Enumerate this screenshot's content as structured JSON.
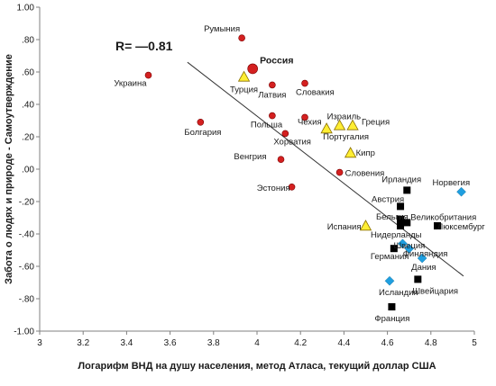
{
  "chart_data": {
    "type": "scatter",
    "xlabel": "Логарифм ВНД на душу населения, метод Атласа, текущий доллар США",
    "ylabel": "Забота о людях и природе - Самоутверждение",
    "xlim": [
      3,
      5
    ],
    "ylim": [
      -1.0,
      1.0
    ],
    "x_ticks": [
      "3",
      "3.2",
      "3.4",
      "3.6",
      "3.8",
      "4",
      "4.2",
      "4.4",
      "4.6",
      "4.8",
      "5"
    ],
    "y_ticks": [
      "1.00",
      ".80",
      ".60",
      ".40",
      ".20",
      ".00",
      "-.20",
      "-.40",
      "-.60",
      "-.80",
      "-1.00"
    ],
    "annotation": "R= —0.81",
    "trendline": {
      "x": [
        3.68,
        4.95
      ],
      "y": [
        0.66,
        -0.66
      ]
    },
    "colors": {
      "group1": "#d42020",
      "group2": "#ffee33",
      "group3": "#000000",
      "group4": "#1f9fe0"
    },
    "points": [
      {
        "label": "Румыния",
        "x": 3.93,
        "y": 0.81,
        "shape": "circle",
        "color": "group1"
      },
      {
        "label": "Россия",
        "x": 3.98,
        "y": 0.62,
        "shape": "circle",
        "color": "group1",
        "highlight": true
      },
      {
        "label": "Украина",
        "x": 3.5,
        "y": 0.58,
        "shape": "circle",
        "color": "group1"
      },
      {
        "label": "Турция",
        "x": 3.94,
        "y": 0.57,
        "shape": "triangle",
        "color": "group2"
      },
      {
        "label": "Латвия",
        "x": 4.07,
        "y": 0.52,
        "shape": "circle",
        "color": "group1"
      },
      {
        "label": "Словакия",
        "x": 4.22,
        "y": 0.53,
        "shape": "circle",
        "color": "group1"
      },
      {
        "label": "Польша",
        "x": 4.07,
        "y": 0.33,
        "shape": "circle",
        "color": "group1"
      },
      {
        "label": "Чехия",
        "x": 4.22,
        "y": 0.32,
        "shape": "circle",
        "color": "group1"
      },
      {
        "label": "Израиль",
        "x": 4.38,
        "y": 0.27,
        "shape": "triangle",
        "color": "group2"
      },
      {
        "label": "Греция",
        "x": 4.44,
        "y": 0.27,
        "shape": "triangle",
        "color": "group2"
      },
      {
        "label": "Болгария",
        "x": 3.74,
        "y": 0.29,
        "shape": "circle",
        "color": "group1"
      },
      {
        "label": "Португалия",
        "x": 4.32,
        "y": 0.25,
        "shape": "triangle",
        "color": "group2"
      },
      {
        "label": "Хорватия",
        "x": 4.13,
        "y": 0.22,
        "shape": "circle",
        "color": "group1"
      },
      {
        "label": "Кипр",
        "x": 4.43,
        "y": 0.1,
        "shape": "triangle",
        "color": "group2"
      },
      {
        "label": "Венгрия",
        "x": 4.11,
        "y": 0.06,
        "shape": "circle",
        "color": "group1"
      },
      {
        "label": "Словения",
        "x": 4.38,
        "y": -0.02,
        "shape": "circle",
        "color": "group1"
      },
      {
        "label": "Эстония",
        "x": 4.16,
        "y": -0.11,
        "shape": "circle",
        "color": "group1"
      },
      {
        "label": "Ирландия",
        "x": 4.69,
        "y": -0.13,
        "shape": "square",
        "color": "group3"
      },
      {
        "label": "Норвегия",
        "x": 4.94,
        "y": -0.14,
        "shape": "diamond",
        "color": "group4"
      },
      {
        "label": "Австрия",
        "x": 4.66,
        "y": -0.23,
        "shape": "square",
        "color": "group3"
      },
      {
        "label": "Бельгия",
        "x": 4.66,
        "y": -0.31,
        "shape": "square",
        "color": "group3"
      },
      {
        "label": "Великобритания",
        "x": 4.69,
        "y": -0.33,
        "shape": "square",
        "color": "group3"
      },
      {
        "label": "Испания",
        "x": 4.5,
        "y": -0.35,
        "shape": "triangle",
        "color": "group2"
      },
      {
        "label": "Нидерланды",
        "x": 4.66,
        "y": -0.35,
        "shape": "square",
        "color": "group3"
      },
      {
        "label": "Люксембург",
        "x": 4.83,
        "y": -0.35,
        "shape": "square",
        "color": "group3"
      },
      {
        "label": "Швеция",
        "x": 4.67,
        "y": -0.46,
        "shape": "diamond",
        "color": "group4"
      },
      {
        "label": "Финляндия",
        "x": 4.7,
        "y": -0.49,
        "shape": "diamond",
        "color": "group4"
      },
      {
        "label": "Германия",
        "x": 4.63,
        "y": -0.49,
        "shape": "square",
        "color": "group3"
      },
      {
        "label": "Дания",
        "x": 4.76,
        "y": -0.55,
        "shape": "diamond",
        "color": "group4"
      },
      {
        "label": "Исландия",
        "x": 4.61,
        "y": -0.69,
        "shape": "diamond",
        "color": "group4"
      },
      {
        "label": "Швейцария",
        "x": 4.74,
        "y": -0.68,
        "shape": "square",
        "color": "group3"
      },
      {
        "label": "Франция",
        "x": 4.62,
        "y": -0.85,
        "shape": "square",
        "color": "group3"
      }
    ]
  }
}
